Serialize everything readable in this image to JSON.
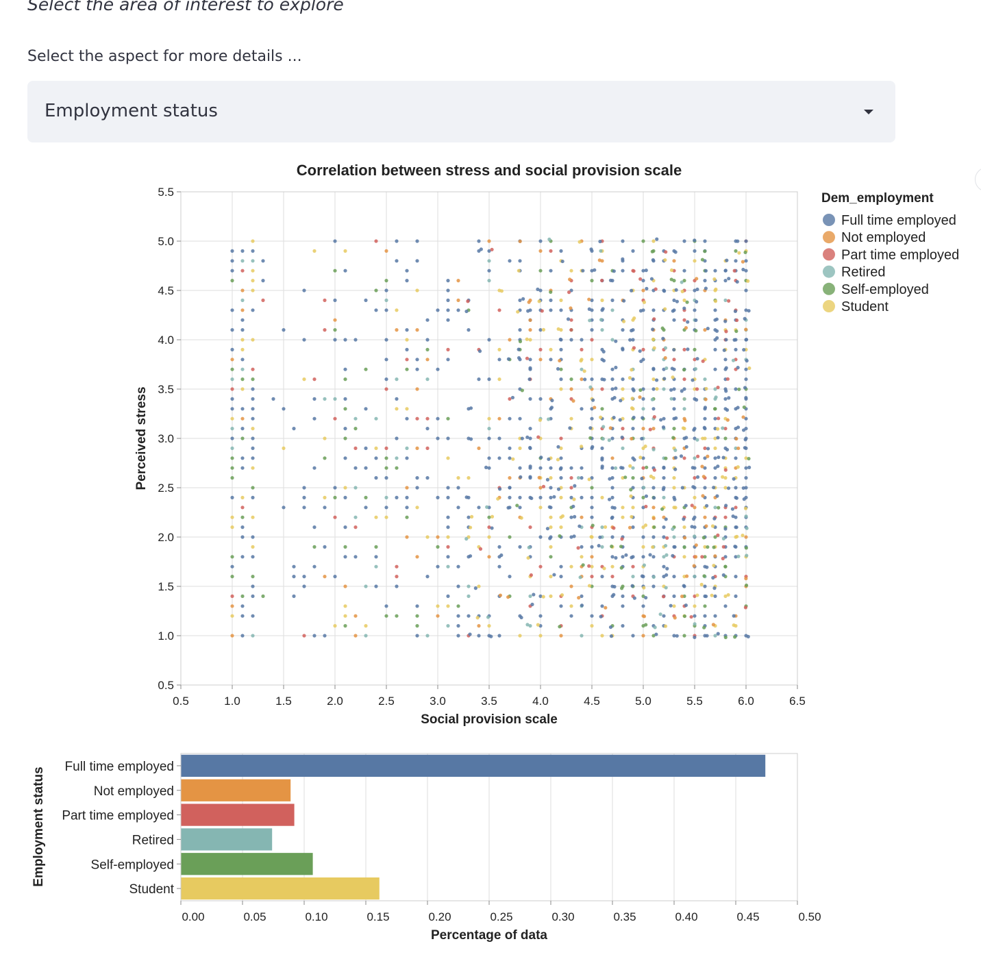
{
  "page": {
    "subheading": "Select the area of interest to explore",
    "select_label": "Select the aspect for more details ...",
    "selected_option": "Employment status"
  },
  "colors": {
    "Full time employed": "#5778a4",
    "Not employed": "#e49444",
    "Part time employed": "#d1615d",
    "Retired": "#85b6b2",
    "Self-employed": "#6a9f58",
    "Student": "#e7ca60"
  },
  "chart_data": [
    {
      "type": "scatter",
      "title": "Correlation between stress and social provision scale",
      "xlabel": "Social provision scale",
      "ylabel": "Perceived stress",
      "xlim": [
        0.5,
        6.5
      ],
      "ylim": [
        0.5,
        5.5
      ],
      "x_ticks": [
        "0.5",
        "1.0",
        "1.5",
        "2.0",
        "2.5",
        "3.0",
        "3.5",
        "4.0",
        "4.5",
        "5.0",
        "5.5",
        "6.0",
        "6.5"
      ],
      "y_ticks": [
        "0.5",
        "1.0",
        "1.5",
        "2.0",
        "2.5",
        "3.0",
        "3.5",
        "4.0",
        "4.5",
        "5.0",
        "5.5"
      ],
      "x_range_of_points": [
        1.0,
        6.0
      ],
      "y_range_of_points": [
        1.0,
        5.0
      ],
      "grid": true,
      "legend": {
        "title": "Dem_employment",
        "position": "right",
        "entries": [
          "Full time employed",
          "Not employed",
          "Part time employed",
          "Retired",
          "Self-employed",
          "Student"
        ]
      }
    },
    {
      "type": "bar",
      "orientation": "horizontal",
      "xlabel": "Percentage of data",
      "ylabel": "Employment status",
      "categories": [
        "Full time employed",
        "Not employed",
        "Part time employed",
        "Retired",
        "Self-employed",
        "Student"
      ],
      "values": [
        0.474,
        0.089,
        0.092,
        0.074,
        0.107,
        0.161
      ],
      "xlim": [
        0,
        0.5
      ],
      "x_ticks": [
        "0.00",
        "0.05",
        "0.10",
        "0.15",
        "0.20",
        "0.25",
        "0.30",
        "0.35",
        "0.40",
        "0.45",
        "0.50"
      ],
      "grid": true
    }
  ]
}
